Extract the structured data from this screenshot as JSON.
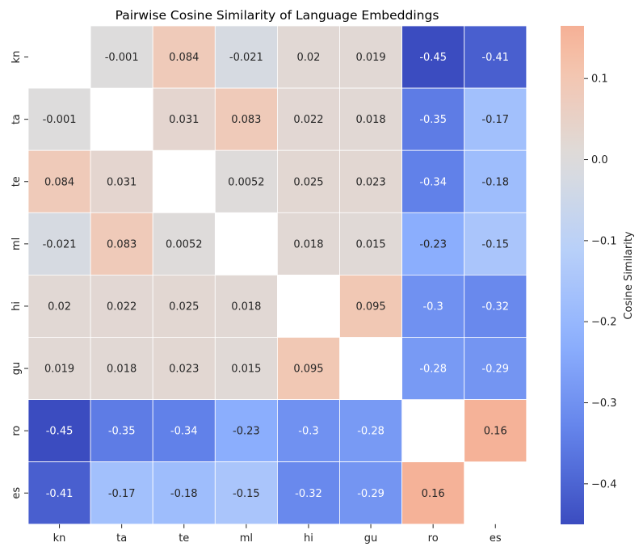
{
  "chart_data": {
    "type": "heatmap",
    "title": "Pairwise Cosine Similarity of Language Embeddings",
    "x_labels": [
      "kn",
      "ta",
      "te",
      "ml",
      "hi",
      "gu",
      "ro",
      "es"
    ],
    "y_labels": [
      "kn",
      "ta",
      "te",
      "ml",
      "hi",
      "gu",
      "ro",
      "es"
    ],
    "matrix": [
      [
        null,
        -0.001,
        0.084,
        -0.021,
        0.02,
        0.019,
        -0.45,
        -0.41
      ],
      [
        -0.001,
        null,
        0.031,
        0.083,
        0.022,
        0.018,
        -0.35,
        -0.17
      ],
      [
        0.084,
        0.031,
        null,
        0.0052,
        0.025,
        0.023,
        -0.34,
        -0.18
      ],
      [
        -0.021,
        0.083,
        0.0052,
        null,
        0.018,
        0.015,
        -0.23,
        -0.15
      ],
      [
        0.02,
        0.022,
        0.025,
        0.018,
        null,
        0.095,
        -0.3,
        -0.32
      ],
      [
        0.019,
        0.018,
        0.023,
        0.015,
        0.095,
        null,
        -0.28,
        -0.29
      ],
      [
        -0.45,
        -0.35,
        -0.34,
        -0.23,
        -0.3,
        -0.28,
        null,
        0.16
      ],
      [
        -0.41,
        -0.17,
        -0.18,
        -0.15,
        -0.32,
        -0.29,
        0.16,
        null
      ]
    ],
    "cell_labels": [
      [
        "",
        "-0.001",
        "0.084",
        "-0.021",
        "0.02",
        "0.019",
        "-0.45",
        "-0.41"
      ],
      [
        "-0.001",
        "",
        "0.031",
        "0.083",
        "0.022",
        "0.018",
        "-0.35",
        "-0.17"
      ],
      [
        "0.084",
        "0.031",
        "",
        "0.0052",
        "0.025",
        "0.023",
        "-0.34",
        "-0.18"
      ],
      [
        "-0.021",
        "0.083",
        "0.0052",
        "",
        "0.018",
        "0.015",
        "-0.23",
        "-0.15"
      ],
      [
        "0.02",
        "0.022",
        "0.025",
        "0.018",
        "",
        "0.095",
        "-0.3",
        "-0.32"
      ],
      [
        "0.019",
        "0.018",
        "0.023",
        "0.015",
        "0.095",
        "",
        "-0.28",
        "-0.29"
      ],
      [
        "-0.45",
        "-0.35",
        "-0.34",
        "-0.23",
        "-0.3",
        "-0.28",
        "",
        "0.16"
      ],
      [
        "-0.41",
        "-0.17",
        "-0.18",
        "-0.15",
        "-0.32",
        "-0.29",
        "0.16",
        ""
      ]
    ],
    "colorbar": {
      "label": "Cosine Similarity",
      "colormap": "coolwarm",
      "range": [
        -0.45,
        0.165
      ],
      "center": 0,
      "ticks": [
        0.1,
        0.0,
        -0.1,
        -0.2,
        -0.3,
        -0.4
      ],
      "tick_labels": [
        "0.1",
        "0.0",
        "−0.1",
        "−0.2",
        "−0.3",
        "−0.4"
      ]
    },
    "colors": {
      "low": "#3b4cc0",
      "mid": "#dddcdc",
      "high": "#f4a582",
      "grid_line": "#ffffff"
    }
  }
}
